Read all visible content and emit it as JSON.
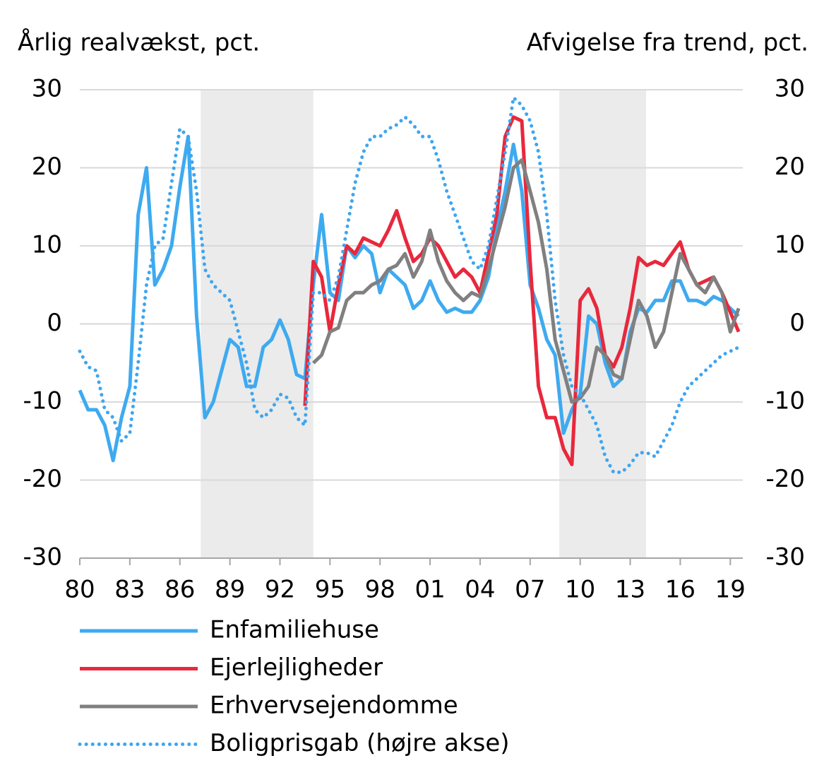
{
  "chart_data": {
    "type": "line",
    "y_axis_label": "Årlig realvækst, pct.",
    "y2_axis_label": "Afvigelse fra trend, pct.",
    "x": [
      1980,
      1980.5,
      1981,
      1981.5,
      1982,
      1982.5,
      1983,
      1983.5,
      1984,
      1984.5,
      1985,
      1985.5,
      1986,
      1986.5,
      1987,
      1987.5,
      1988,
      1988.5,
      1989,
      1989.5,
      1990,
      1990.5,
      1991,
      1991.5,
      1992,
      1992.5,
      1993,
      1993.5,
      1994,
      1994.5,
      1995,
      1995.5,
      1996,
      1996.5,
      1997,
      1997.5,
      1998,
      1998.5,
      1999,
      1999.5,
      2000,
      2000.5,
      2001,
      2001.5,
      2002,
      2002.5,
      2003,
      2003.5,
      2004,
      2004.5,
      2005,
      2005.5,
      2006,
      2006.5,
      2007,
      2007.5,
      2008,
      2008.5,
      2009,
      2009.5,
      2010,
      2010.5,
      2011,
      2011.5,
      2012,
      2012.5,
      2013,
      2013.5,
      2014,
      2014.5,
      2015,
      2015.5,
      2016,
      2016.5,
      2017,
      2017.5,
      2018,
      2018.5,
      2019,
      2019.5
    ],
    "series": [
      {
        "name": "Enfamiliehuse",
        "color": "#3eaaf0",
        "dash": "solid",
        "axis": "y",
        "values": [
          -8.5,
          -11,
          -11,
          -13,
          -17.5,
          -12,
          -8,
          14,
          20,
          5,
          7,
          10,
          17.5,
          24,
          1,
          -12,
          -10,
          -6,
          -2,
          -3,
          -8,
          -8,
          -3,
          -2,
          0.5,
          -2,
          -6.5,
          -7,
          5,
          14,
          4,
          3,
          10,
          8.5,
          10,
          9,
          4,
          7,
          6,
          5,
          2,
          3,
          5.5,
          3,
          1.5,
          2,
          1.5,
          1.5,
          3,
          6,
          12,
          17,
          23,
          17,
          5,
          2,
          -2,
          -4,
          -14,
          -11,
          -9,
          1,
          0,
          -5,
          -8,
          -7,
          -1,
          2,
          1.5,
          3,
          3,
          5.5,
          5.5,
          3,
          3,
          2.5,
          3.5,
          3,
          2,
          1
        ]
      },
      {
        "name": "Ejerlejligheder",
        "color": "#e8283c",
        "dash": "solid",
        "axis": "y",
        "values": [
          null,
          null,
          null,
          null,
          null,
          null,
          null,
          null,
          null,
          null,
          null,
          null,
          null,
          null,
          null,
          null,
          null,
          null,
          null,
          null,
          null,
          null,
          null,
          null,
          null,
          null,
          null,
          -10.5,
          8,
          6,
          -1,
          5,
          10,
          9,
          11,
          10.5,
          10,
          12,
          14.5,
          11,
          8,
          9,
          11,
          10,
          8,
          6,
          7,
          6,
          4,
          9,
          14,
          24,
          26.5,
          26,
          8,
          -8,
          -12,
          -12,
          -16,
          -18,
          3,
          4.5,
          2,
          -4,
          -5.5,
          -3,
          2,
          8.5,
          7.5,
          8,
          7.5,
          9,
          10.5,
          7,
          5,
          5.5,
          6,
          4,
          1.5,
          -1
        ]
      },
      {
        "name": "Erhvervsejendomme",
        "color": "#808080",
        "dash": "solid",
        "axis": "y",
        "values": [
          null,
          null,
          null,
          null,
          null,
          null,
          null,
          null,
          null,
          null,
          null,
          null,
          null,
          null,
          null,
          null,
          null,
          null,
          null,
          null,
          null,
          null,
          null,
          null,
          null,
          null,
          null,
          null,
          -5,
          -4,
          -1,
          -0.5,
          3,
          4,
          4,
          5,
          5.5,
          7,
          7.5,
          9,
          6,
          8,
          12,
          8,
          5.5,
          4,
          3,
          4,
          3.5,
          7,
          11,
          15,
          20,
          21,
          17,
          13,
          7,
          -2,
          -6,
          -10,
          -9.5,
          -8,
          -3,
          -4,
          -6.5,
          -7,
          -2,
          3,
          1,
          -3,
          -1,
          4,
          9,
          7,
          5,
          4,
          6,
          4,
          -1,
          2
        ]
      },
      {
        "name": "Boligprisgab (højre akse)",
        "color": "#3ea6f0",
        "dash": "dotted",
        "axis": "y2",
        "values": [
          -3.5,
          -5.5,
          -6,
          -11,
          -12,
          -15,
          -14,
          -5,
          5,
          10,
          11,
          18,
          25,
          24,
          17,
          7,
          5,
          4,
          3,
          -1,
          -5,
          -11,
          -12,
          -11,
          -9,
          -9.5,
          -12,
          -13,
          4,
          4,
          3,
          6,
          12,
          18,
          22,
          24,
          24,
          25,
          25.5,
          26.5,
          25.5,
          24,
          24,
          21,
          17,
          14,
          11,
          8,
          7,
          10,
          16,
          22,
          29,
          28,
          26,
          22,
          14,
          3,
          -4,
          -8,
          -9,
          -11,
          -13,
          -17,
          -19,
          -19,
          -18,
          -16.5,
          -16.5,
          -17,
          -15,
          -13,
          -10,
          -8,
          -7,
          -6,
          -5,
          -4,
          -3.5,
          -3
        ]
      }
    ],
    "shaded_periods": [
      {
        "start": 1987.25,
        "end": 1994
      },
      {
        "start": 2008.75,
        "end": 2013.95
      }
    ],
    "shade_color": "#ebebeb",
    "xlim": [
      1980,
      2019.75
    ],
    "xticks": [
      {
        "value": 1980,
        "label": "80"
      },
      {
        "value": 1983,
        "label": "83"
      },
      {
        "value": 1986,
        "label": "86"
      },
      {
        "value": 1989,
        "label": "89"
      },
      {
        "value": 1992,
        "label": "92"
      },
      {
        "value": 1995,
        "label": "95"
      },
      {
        "value": 1998,
        "label": "98"
      },
      {
        "value": 2001,
        "label": "01"
      },
      {
        "value": 2004,
        "label": "04"
      },
      {
        "value": 2007,
        "label": "07"
      },
      {
        "value": 2010,
        "label": "10"
      },
      {
        "value": 2013,
        "label": "13"
      },
      {
        "value": 2016,
        "label": "16"
      },
      {
        "value": 2019,
        "label": "19"
      }
    ],
    "ylim": [
      -30,
      30
    ],
    "yticks": [
      -30,
      -20,
      -10,
      0,
      10,
      20,
      30
    ],
    "y2lim": [
      -30,
      30
    ],
    "y2ticks": [
      -30,
      -20,
      -10,
      0,
      10,
      20,
      30
    ],
    "grid": true
  }
}
